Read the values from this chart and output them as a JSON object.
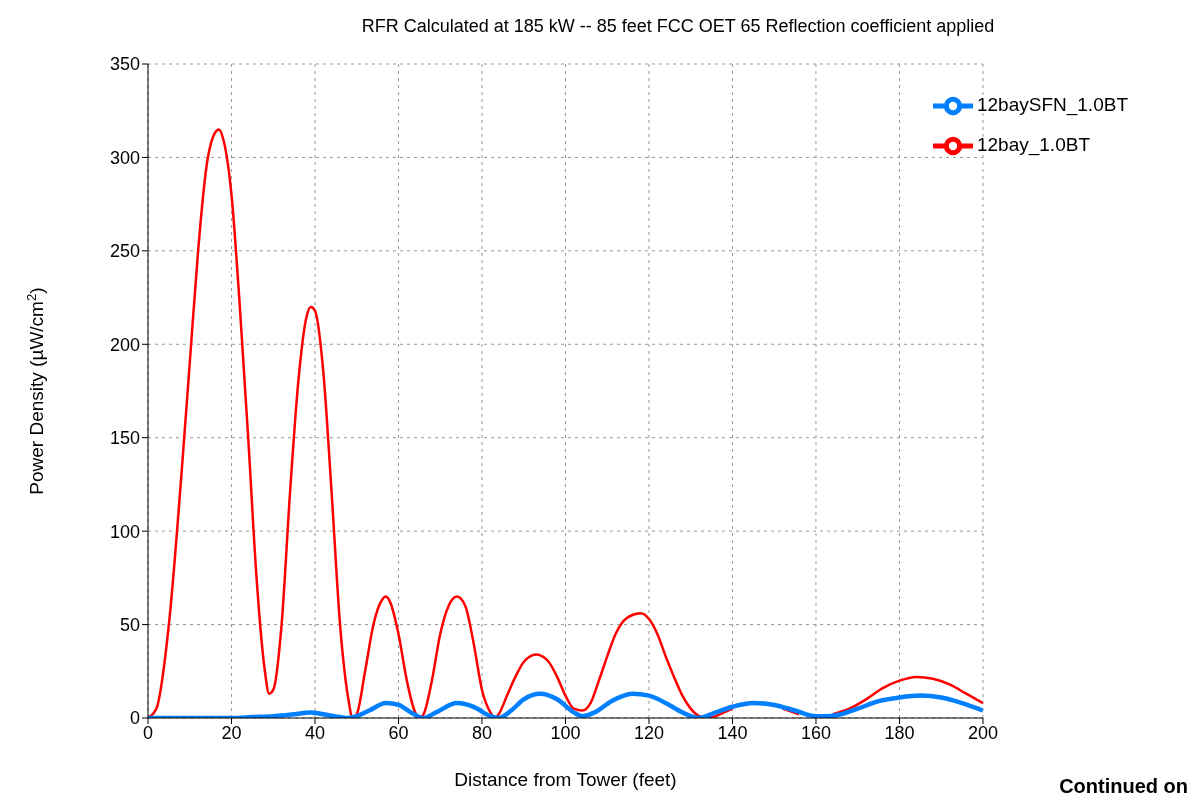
{
  "chart_data": {
    "type": "line",
    "title": "RFR Calculated at 185 kW -- 85 feet FCC OET 65 Reflection coefficient applied",
    "xlabel": "Distance from Tower (feet)",
    "ylabel": "Power Density (µW/cm$^{2}$)",
    "annotations": [
      "Continued on"
    ],
    "xlim": [
      0,
      200
    ],
    "xticks": [
      0,
      20,
      40,
      60,
      80,
      100,
      120,
      140,
      160,
      180,
      200
    ],
    "ylim": [
      0,
      350
    ],
    "yticks": [
      0,
      50,
      100,
      150,
      200,
      250,
      300,
      350
    ],
    "grid": true,
    "legend": "top right",
    "marker": "none",
    "line_style": "solid",
    "series": [
      {
        "name": "12bay_1.0BT",
        "color": "#ff0000",
        "x": [
          0,
          2,
          5,
          8,
          10,
          12,
          14,
          16,
          17,
          18,
          20,
          22,
          24,
          26,
          28,
          29,
          30,
          32,
          34,
          36,
          38,
          39,
          40,
          42,
          44,
          46,
          48,
          49,
          50,
          52,
          54,
          56,
          57,
          58,
          60,
          62,
          64,
          65,
          66,
          68,
          70,
          72,
          74,
          76,
          78,
          80,
          82,
          83,
          84,
          86,
          88,
          90,
          93,
          96,
          98,
          100,
          102,
          104,
          106,
          108,
          110,
          112,
          115,
          118,
          120,
          122,
          124,
          126,
          128,
          130,
          132,
          134,
          136,
          138,
          140,
          144,
          148,
          152,
          156,
          160,
          164,
          168,
          172,
          176,
          180,
          184,
          188,
          192,
          196,
          200
        ],
        "values": [
          0,
          5,
          50,
          130,
          190,
          250,
          295,
          313,
          315,
          310,
          280,
          220,
          150,
          75,
          25,
          13,
          15,
          50,
          120,
          180,
          215,
          220,
          218,
          185,
          120,
          50,
          10,
          0,
          2,
          25,
          50,
          63,
          65,
          62,
          45,
          20,
          3,
          0,
          2,
          20,
          45,
          60,
          65,
          60,
          40,
          15,
          3,
          0,
          2,
          12,
          22,
          30,
          34,
          30,
          22,
          12,
          5,
          4,
          8,
          20,
          33,
          45,
          54,
          56,
          53,
          45,
          33,
          22,
          12,
          5,
          1,
          0,
          1,
          3,
          5,
          null,
          null,
          5,
          2,
          null,
          2,
          5,
          10,
          16,
          20,
          22,
          21,
          18,
          13,
          8
        ]
      },
      {
        "name": "12baySFN_1.0BT",
        "color": "#0080ff",
        "x": [
          0,
          20,
          25,
          30,
          35,
          39,
          42,
          46,
          48,
          50,
          53,
          57,
          60,
          63,
          66,
          69,
          74,
          78,
          82,
          84,
          87,
          90,
          94,
          98,
          102,
          104,
          107,
          111,
          116,
          120,
          124,
          128,
          132,
          136,
          140,
          145,
          150,
          155,
          160,
          163,
          166,
          170,
          175,
          180,
          185,
          190,
          195,
          200
        ],
        "values": [
          0,
          0,
          0.5,
          1,
          2,
          3,
          2,
          0.5,
          0,
          1,
          4,
          8,
          7,
          3,
          0,
          3,
          8,
          6,
          1,
          0,
          4,
          10,
          13,
          10,
          3,
          1,
          3,
          9,
          13,
          12,
          8,
          3,
          0,
          3,
          6,
          8,
          7,
          4,
          1,
          1,
          2,
          5,
          9,
          11,
          12,
          11,
          8,
          4
        ]
      }
    ]
  }
}
